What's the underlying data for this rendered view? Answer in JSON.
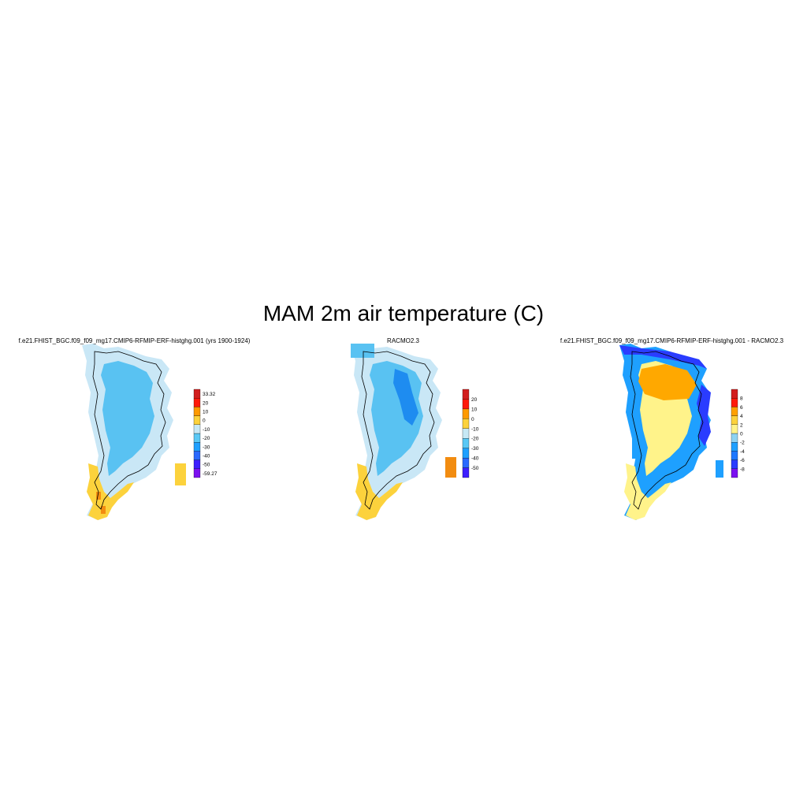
{
  "title": "MAM 2m air temperature (C)",
  "colors": {
    "ocean": "#ffffff",
    "coast": "#000000"
  },
  "panels": [
    {
      "title": "f.e21.FHIST_BGC.f09_f09_mg17.CMIP6-RFMIP-ERF-histghg.001 (yrs 1900-1924)",
      "colorbar": {
        "colors": [
          "#7b10f0",
          "#3d1fff",
          "#2a69ff",
          "#1ea0ff",
          "#59c8f5",
          "#c7e8f5",
          "#fcd23c",
          "#ff9a00",
          "#ff1a0a",
          "#d21e1e"
        ],
        "labels": [
          "-59.27",
          "-50",
          "-40",
          "-30",
          "-20",
          "-10",
          "0",
          "10",
          "20",
          "33.32"
        ]
      },
      "fill_interior": "#59c2f2",
      "fill_edge": "#c9e7f6",
      "fill_south": "#fcd23c",
      "fill_accent": "#f28c10"
    },
    {
      "title": "RACMO2.3",
      "colorbar": {
        "colors": [
          "#3d1fff",
          "#2a69ff",
          "#1ea0ff",
          "#59c8f5",
          "#c7e8f5",
          "#fcd23c",
          "#ff9a00",
          "#ff1a0a",
          "#d21e1e"
        ],
        "labels": [
          "-50",
          "-40",
          "-30",
          "-20",
          "-10",
          "0",
          "10",
          "20"
        ]
      },
      "fill_interior": "#59c2f2",
      "fill_edge": "#c9e7f6",
      "fill_south": "#fcd23c",
      "fill_accent": "#1e8cf0"
    },
    {
      "title": "f.e21.FHIST_BGC.f09_f09_mg17.CMIP6-RFMIP-ERF-histghg.001 - RACMO2.3",
      "colorbar": {
        "colors": [
          "#7b10f0",
          "#2a3cff",
          "#1e78ff",
          "#1ea0ff",
          "#8ed2f2",
          "#fff38a",
          "#fcd23c",
          "#ffa000",
          "#ff1a0a",
          "#d21e1e"
        ],
        "labels": [
          "-8",
          "-6",
          "-4",
          "-2",
          "0",
          "2",
          "4",
          "6",
          "8"
        ]
      },
      "fill_interior": "#fff38a",
      "fill_edge": "#1ea0ff",
      "fill_south": "#fff38a",
      "fill_accent": "#ffa800"
    }
  ]
}
